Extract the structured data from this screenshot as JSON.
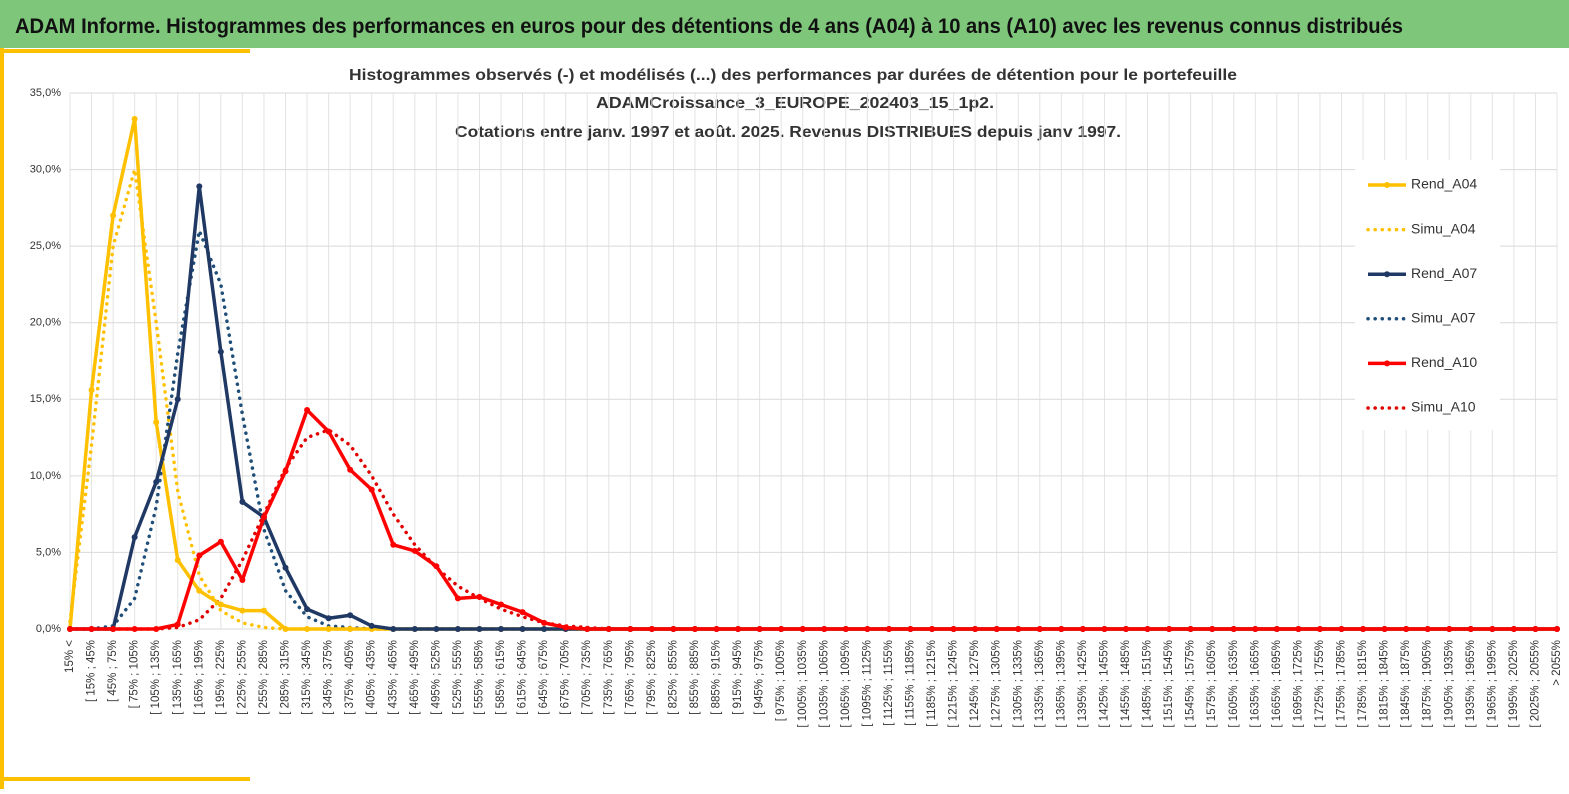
{
  "header_title": "ADAM Informe. Histogrammes des performances en euros pour des détentions de 4 ans (A04) à 10 ans (A10) avec les revenus connus distribués",
  "chart_data": {
    "type": "line",
    "title": [
      "Histogrammes observés (-) et modélisés (...) des performances par durées de détention pour le portefeuille",
      "ADAMCroissance_3_EUROPE_202403_15_1p2.",
      "Cotations entre janv. 1997 et août. 2025. Revenus DISTRIBUES depuis janv 1997."
    ],
    "categories": [
      "15% <",
      "[ 15% ; 45%",
      "[ 45% ; 75%",
      "[ 75% ; 105%",
      "[ 105% ; 135%",
      "[ 135% ; 165%",
      "[ 165% ; 195%",
      "[ 195% ; 225%",
      "[ 225% ; 255%",
      "[ 255% ; 285%",
      "[ 285% ; 315%",
      "[ 315% ; 345%",
      "[ 345% ; 375%",
      "[ 375% ; 405%",
      "[ 405% ; 435%",
      "[ 435% ; 465%",
      "[ 465% ; 495%",
      "[ 495% ; 525%",
      "[ 525% ; 555%",
      "[ 555% ; 585%",
      "[ 585% ; 615%",
      "[ 615% ; 645%",
      "[ 645% ; 675%",
      "[ 675% ; 705%",
      "[ 705% ; 735%",
      "[ 735% ; 765%",
      "[ 765% ; 795%",
      "[ 795% ; 825%",
      "[ 825% ; 855%",
      "[ 855% ; 885%",
      "[ 885% ; 915%",
      "[ 915% ; 945%",
      "[ 945% ; 975%",
      "[ 975% ; 1005%",
      "[ 1005% ; 1035%",
      "[ 1035% ; 1065%",
      "[ 1065% ; 1095%",
      "[ 1095% ; 1125%",
      "[ 1125% ; 1155%",
      "[ 1155% ; 1185%",
      "[ 1185% ; 1215%",
      "[ 1215% ; 1245%",
      "[ 1245% ; 1275%",
      "[ 1275% ; 1305%",
      "[ 1305% ; 1335%",
      "[ 1335% ; 1365%",
      "[ 1365% ; 1395%",
      "[ 1395% ; 1425%",
      "[ 1425% ; 1455%",
      "[ 1455% ; 1485%",
      "[ 1485% ; 1515%",
      "[ 1515% ; 1545%",
      "[ 1545% ; 1575%",
      "[ 1575% ; 1605%",
      "[ 1605% ; 1635%",
      "[ 1635% ; 1665%",
      "[ 1665% ; 1695%",
      "[ 1695% ; 1725%",
      "[ 1725% ; 1755%",
      "[ 1755% ; 1785%",
      "[ 1785% ; 1815%",
      "[ 1815% ; 1845%",
      "[ 1845% ; 1875%",
      "[ 1875% ; 1905%",
      "[ 1905% ; 1935%",
      "[ 1935% ; 1965%",
      "[ 1965% ; 1995%",
      "[ 1995% ; 2025%",
      "[ 2025% ; 2055%",
      "> 2055%"
    ],
    "series": [
      {
        "name": "Rend_A04",
        "color": "#ffc000",
        "style": "solid",
        "values": [
          0,
          15.6,
          27,
          33.3,
          13.5,
          4.5,
          2.5,
          1.6,
          1.2,
          1.2,
          0,
          0,
          0,
          0,
          0,
          0,
          0,
          0,
          0,
          0,
          0,
          0,
          0,
          0,
          0,
          0,
          0,
          0,
          0,
          0,
          0,
          0,
          0,
          0,
          0,
          0,
          0,
          0,
          0,
          0,
          0,
          0,
          0,
          0,
          0,
          0,
          0,
          0,
          0,
          0,
          0,
          0,
          0,
          0,
          0,
          0,
          0,
          0,
          0,
          0,
          0,
          0,
          0,
          0,
          0,
          0,
          0,
          0,
          0,
          0
        ]
      },
      {
        "name": "Simu_A04",
        "color": "#ffc000",
        "style": "dotted",
        "values": [
          0.5,
          12,
          25,
          30,
          20,
          9,
          3.5,
          1.2,
          0.4,
          0.1,
          0,
          0,
          0,
          0,
          0,
          0,
          0,
          0,
          0,
          0,
          0,
          0,
          0,
          0,
          0,
          0,
          0,
          0,
          0,
          0,
          0,
          0,
          0,
          0,
          0,
          0,
          0,
          0,
          0,
          0,
          0,
          0,
          0,
          0,
          0,
          0,
          0,
          0,
          0,
          0,
          0,
          0,
          0,
          0,
          0,
          0,
          0,
          0,
          0,
          0,
          0,
          0,
          0,
          0,
          0,
          0,
          0,
          0,
          0,
          0
        ]
      },
      {
        "name": "Rend_A07",
        "color": "#1f3864",
        "style": "solid",
        "values": [
          0,
          0,
          0,
          6,
          9.6,
          15,
          28.9,
          18.1,
          8.3,
          7.3,
          4,
          1.3,
          0.7,
          0.9,
          0.2,
          0,
          0,
          0,
          0,
          0,
          0,
          0,
          0,
          0,
          0,
          0,
          0,
          0,
          0,
          0,
          0,
          0,
          0,
          0,
          0,
          0,
          0,
          0,
          0,
          0,
          0,
          0,
          0,
          0,
          0,
          0,
          0,
          0,
          0,
          0,
          0,
          0,
          0,
          0,
          0,
          0,
          0,
          0,
          0,
          0,
          0,
          0,
          0,
          0,
          0,
          0,
          0,
          0,
          0,
          0
        ]
      },
      {
        "name": "Simu_A07",
        "color": "#1f4e79",
        "style": "dotted",
        "values": [
          0,
          0,
          0.2,
          2,
          8,
          18,
          26,
          22.5,
          14,
          6.5,
          2.5,
          0.8,
          0.2,
          0.1,
          0,
          0,
          0,
          0,
          0,
          0,
          0,
          0,
          0,
          0,
          0,
          0,
          0,
          0,
          0,
          0,
          0,
          0,
          0,
          0,
          0,
          0,
          0,
          0,
          0,
          0,
          0,
          0,
          0,
          0,
          0,
          0,
          0,
          0,
          0,
          0,
          0,
          0,
          0,
          0,
          0,
          0,
          0,
          0,
          0,
          0,
          0,
          0,
          0,
          0,
          0,
          0,
          0,
          0,
          0,
          0
        ]
      },
      {
        "name": "Rend_A10",
        "color": "#ff0000",
        "style": "solid",
        "values": [
          0,
          0,
          0,
          0,
          0,
          0.3,
          4.8,
          5.7,
          3.2,
          7.3,
          10.3,
          14.3,
          12.9,
          10.4,
          9.1,
          5.5,
          5.1,
          4.1,
          2,
          2.1,
          1.6,
          1.1,
          0.4,
          0.1,
          0,
          0,
          0,
          0,
          0,
          0,
          0,
          0,
          0,
          0,
          0,
          0,
          0,
          0,
          0,
          0,
          0,
          0,
          0,
          0,
          0,
          0,
          0,
          0,
          0,
          0,
          0,
          0,
          0,
          0,
          0,
          0,
          0,
          0,
          0,
          0,
          0,
          0,
          0,
          0,
          0,
          0,
          0,
          0,
          0,
          0
        ]
      },
      {
        "name": "Simu_A10",
        "color": "#e00000",
        "style": "dotted",
        "values": [
          0,
          0,
          0,
          0,
          0,
          0.1,
          0.6,
          2,
          4.5,
          7.5,
          10.5,
          12.5,
          13,
          12,
          10,
          7.5,
          5.5,
          4,
          2.8,
          2,
          1.3,
          0.8,
          0.4,
          0.2,
          0.1,
          0,
          0,
          0,
          0,
          0,
          0,
          0,
          0,
          0,
          0,
          0,
          0,
          0,
          0,
          0,
          0,
          0,
          0,
          0,
          0,
          0,
          0,
          0,
          0,
          0,
          0,
          0,
          0,
          0,
          0,
          0,
          0,
          0,
          0,
          0,
          0,
          0,
          0,
          0,
          0,
          0,
          0,
          0,
          0,
          0
        ]
      }
    ],
    "ylim": [
      0,
      35
    ],
    "yticks": [
      {
        "value": 0,
        "label": "0,0%"
      },
      {
        "value": 5,
        "label": "5,0%"
      },
      {
        "value": 10,
        "label": "10,0%"
      },
      {
        "value": 15,
        "label": "15,0%"
      },
      {
        "value": 20,
        "label": "20,0%"
      },
      {
        "value": 25,
        "label": "25,0%"
      },
      {
        "value": 30,
        "label": "30,0%"
      },
      {
        "value": 35,
        "label": "35,0%"
      }
    ],
    "grid": true,
    "legend": "right"
  }
}
